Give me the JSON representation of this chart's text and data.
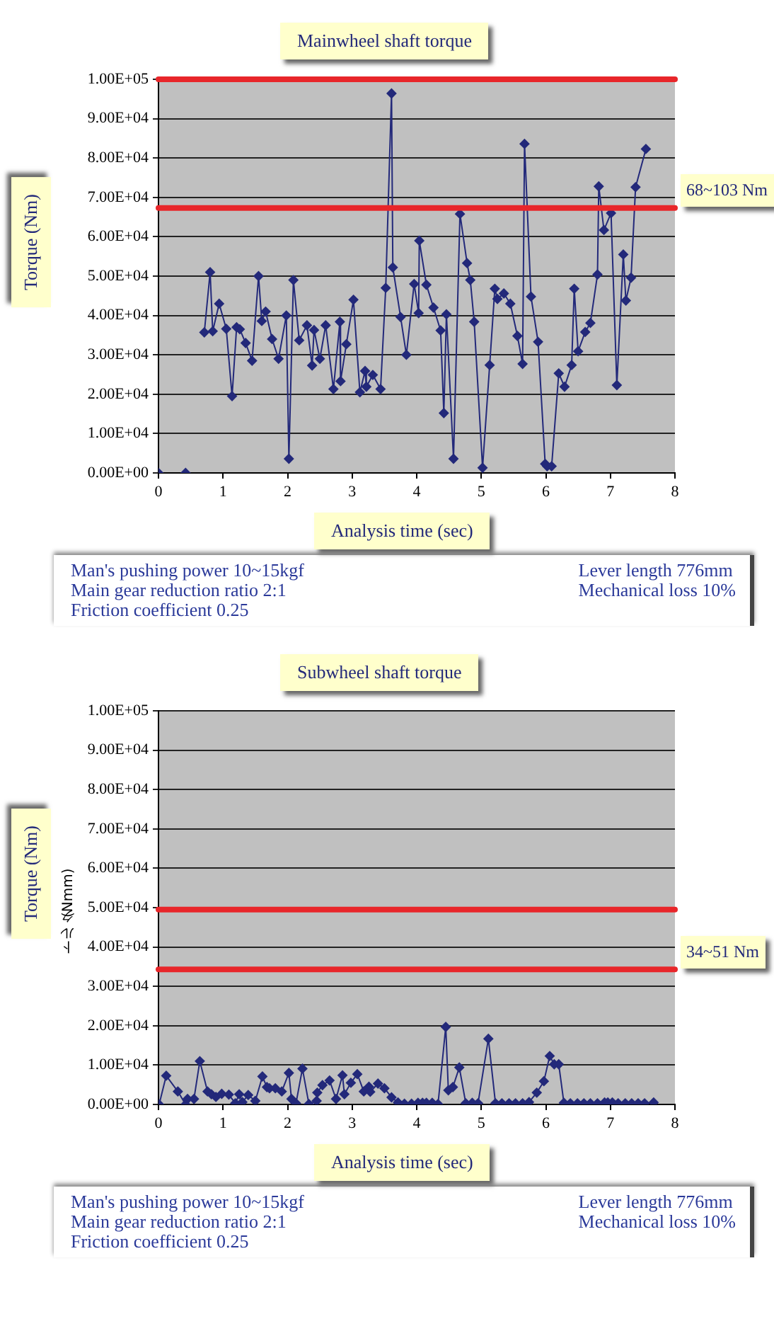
{
  "chart_data": [
    {
      "type": "line",
      "title": "Mainwheel shaft torque",
      "xlabel": "Analysis time (sec)",
      "ylabel": "Torque (Nm)",
      "color": "#23297a",
      "marker": "diamond",
      "grid": "y",
      "xlim": [
        0,
        8
      ],
      "xticks": [
        0,
        1,
        2,
        3,
        4,
        5,
        6,
        7,
        8
      ],
      "ylim": [
        0,
        100000
      ],
      "yticks": [
        {
          "value": 0,
          "label": "0.00E+00"
        },
        {
          "value": 10000,
          "label": "1.00E+04"
        },
        {
          "value": 20000,
          "label": "2.00E+04"
        },
        {
          "value": 30000,
          "label": "3.00E+04"
        },
        {
          "value": 40000,
          "label": "4.00E+04"
        },
        {
          "value": 50000,
          "label": "5.00E+04"
        },
        {
          "value": 60000,
          "label": "6.00E+04"
        },
        {
          "value": 70000,
          "label": "7.00E+04"
        },
        {
          "value": 80000,
          "label": "8.00E+04"
        },
        {
          "value": 90000,
          "label": "9.00E+04"
        },
        {
          "value": 100000,
          "label": "1.00E+05"
        }
      ],
      "x": [
        0,
        0.36,
        0.42,
        0.66,
        0.71,
        0.8,
        0.84,
        0.94,
        1.05,
        1.14,
        1.21,
        1.26,
        1.35,
        1.45,
        1.55,
        1.6,
        1.66,
        1.76,
        1.86,
        1.98,
        2.02,
        2.09,
        2.18,
        2.3,
        2.38,
        2.41,
        2.5,
        2.59,
        2.71,
        2.81,
        2.82,
        2.91,
        3.02,
        3.12,
        3.2,
        3.22,
        3.32,
        3.44,
        3.52,
        3.61,
        3.63,
        3.75,
        3.84,
        3.96,
        4.03,
        4.04,
        4.15,
        4.26,
        4.37,
        4.42,
        4.46,
        4.57,
        4.67,
        4.78,
        4.83,
        4.89,
        5.02,
        5.13,
        5.21,
        5.25,
        5.35,
        5.45,
        5.56,
        5.64,
        5.67,
        5.77,
        5.88,
        5.99,
        6.02,
        6.09,
        6.2,
        6.29,
        6.4,
        6.44,
        6.5,
        6.61,
        6.69,
        6.8,
        6.82,
        6.9,
        7.01,
        7.1,
        7.2,
        7.24,
        7.32,
        7.39,
        7.55
      ],
      "values": [
        0,
        null,
        0,
        null,
        35700,
        51000,
        36000,
        43000,
        36600,
        19500,
        37000,
        36500,
        33000,
        28500,
        50000,
        38600,
        41000,
        34000,
        29000,
        40000,
        3600,
        49000,
        33700,
        37500,
        27300,
        36300,
        29000,
        37500,
        21300,
        38400,
        23300,
        32700,
        44000,
        20500,
        25900,
        21900,
        24900,
        21300,
        47000,
        96400,
        52200,
        39600,
        30000,
        48000,
        40600,
        59000,
        47800,
        42000,
        36200,
        15200,
        40300,
        3600,
        65800,
        53300,
        49000,
        38400,
        1300,
        27400,
        46800,
        44200,
        45600,
        43000,
        34800,
        27700,
        83600,
        44800,
        33300,
        2300,
        1700,
        1700,
        25300,
        21900,
        27400,
        46800,
        30900,
        35800,
        38100,
        50400,
        72800,
        61700,
        66000,
        22300,
        55500,
        43800,
        49600,
        72600,
        82300
      ],
      "ref_lines": [
        {
          "axis": "y",
          "value": 100000,
          "color": "#e8262a"
        },
        {
          "axis": "y",
          "value": 67300,
          "label": "68~103 Nm",
          "color": "#e8262a"
        }
      ],
      "annotations": [
        "Man's pushing power 10~15kgf",
        "Lever length 776mm",
        "Main gear reduction ratio 2:1",
        "Mechanical loss 10%",
        "Friction coefficient 0.25"
      ]
    },
    {
      "type": "line",
      "title": "Subwheel shaft torque",
      "xlabel": "Analysis time (sec)",
      "ylabel": "Torque (Nm)",
      "color": "#23297a",
      "marker": "diamond",
      "grid": "y",
      "xlim": [
        0,
        8
      ],
      "xticks": [
        0,
        1,
        2,
        3,
        4,
        5,
        6,
        7,
        8
      ],
      "ylim": [
        0,
        100000
      ],
      "yticks": [
        {
          "value": 0,
          "label": "0.00E+00"
        },
        {
          "value": 10000,
          "label": "1.00E+04"
        },
        {
          "value": 20000,
          "label": "2.00E+04"
        },
        {
          "value": 30000,
          "label": "3.00E+04"
        },
        {
          "value": 40000,
          "label": "4.00E+04"
        },
        {
          "value": 50000,
          "label": "5.00E+04"
        },
        {
          "value": 60000,
          "label": "6.00E+04"
        },
        {
          "value": 70000,
          "label": "7.00E+04"
        },
        {
          "value": 80000,
          "label": "8.00E+04"
        },
        {
          "value": 90000,
          "label": "9.00E+04"
        },
        {
          "value": 100000,
          "label": "1.00E+05"
        }
      ],
      "x": [
        0.01,
        0.12,
        0.3,
        0.42,
        0.45,
        0.55,
        0.64,
        0.76,
        0.82,
        0.89,
        0.98,
        1.09,
        1.19,
        1.25,
        1.3,
        1.39,
        1.5,
        1.61,
        1.68,
        1.72,
        1.81,
        1.91,
        2.02,
        2.06,
        2.13,
        2.23,
        2.33,
        2.45,
        2.46,
        2.54,
        2.65,
        2.75,
        2.85,
        2.88,
        2.98,
        3.08,
        3.18,
        3.26,
        3.28,
        3.4,
        3.5,
        3.61,
        3.71,
        3.81,
        3.92,
        4.02,
        4.09,
        4.15,
        4.24,
        4.33,
        4.45,
        4.49,
        4.56,
        4.66,
        4.76,
        4.86,
        4.95,
        5.11,
        5.22,
        5.32,
        5.43,
        5.53,
        5.64,
        5.74,
        5.86,
        5.97,
        6.06,
        6.13,
        6.2,
        6.28,
        6.38,
        6.49,
        6.59,
        6.69,
        6.8,
        6.91,
        6.96,
        7.03,
        7.12,
        7.23,
        7.33,
        7.43,
        7.53,
        7.67
      ],
      "values": [
        0,
        7300,
        3300,
        0,
        1400,
        1400,
        11000,
        3300,
        2600,
        1900,
        2700,
        2500,
        300,
        2600,
        600,
        2400,
        900,
        7100,
        4400,
        4100,
        4100,
        3300,
        8000,
        1400,
        300,
        9100,
        100,
        900,
        3000,
        4900,
        6100,
        1400,
        7400,
        2600,
        5500,
        7700,
        3300,
        4500,
        3200,
        5300,
        4100,
        1800,
        500,
        200,
        200,
        400,
        400,
        400,
        400,
        100,
        19700,
        3600,
        4400,
        9400,
        300,
        400,
        300,
        16700,
        300,
        300,
        300,
        300,
        300,
        600,
        3000,
        5900,
        12300,
        10200,
        10200,
        400,
        300,
        300,
        300,
        300,
        300,
        500,
        500,
        500,
        300,
        300,
        300,
        300,
        300,
        500
      ],
      "ref_lines": [
        {
          "axis": "y",
          "value": 49500,
          "color": "#e8262a"
        },
        {
          "axis": "y",
          "value": 34300,
          "label": "34~51 Nm",
          "color": "#e8262a"
        }
      ],
      "annotations": [
        "トルク(Nmm)",
        "Man's pushing power 10~15kgf",
        "Lever length 776mm",
        "Main gear reduction ratio 2:1",
        "Mechanical loss 10%",
        "Friction coefficient 0.25"
      ]
    }
  ]
}
